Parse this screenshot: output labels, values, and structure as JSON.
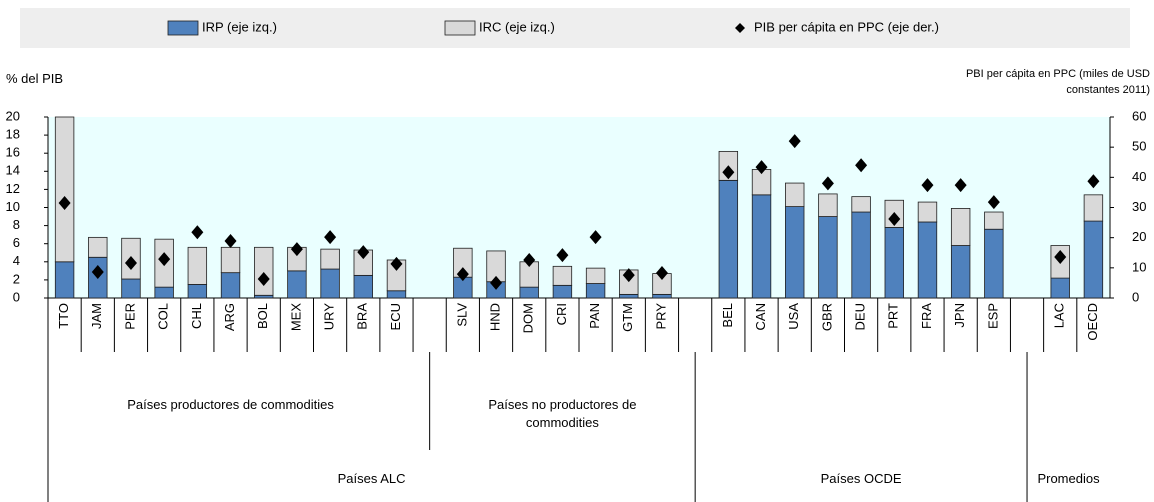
{
  "chart_data": {
    "type": "bar",
    "stacked": true,
    "legend": "top",
    "categories": [
      "TTO",
      "JAM",
      "PER",
      "COL",
      "CHL",
      "ARG",
      "BOL",
      "MEX",
      "URY",
      "BRA",
      "ECU",
      null,
      "SLV",
      "HND",
      "DOM",
      "CRI",
      "PAN",
      "GTM",
      "PRY",
      null,
      "BEL",
      "CAN",
      "USA",
      "GBR",
      "DEU",
      "PRT",
      "FRA",
      "JPN",
      "ESP",
      null,
      "LAC",
      "OECD"
    ],
    "series": [
      {
        "name": "IRP (eje izq.)",
        "color": "#4f81bd",
        "values": [
          4.0,
          4.5,
          2.1,
          1.2,
          1.5,
          2.8,
          0.3,
          3.0,
          3.2,
          2.5,
          0.8,
          null,
          2.3,
          1.8,
          1.2,
          1.4,
          1.6,
          0.4,
          0.4,
          null,
          13.0,
          11.4,
          10.1,
          9.0,
          9.5,
          7.8,
          8.4,
          5.8,
          7.6,
          null,
          2.2,
          8.5
        ]
      },
      {
        "name": "IRC (eje izq.)",
        "color": "#d9d9d9",
        "values": [
          16.0,
          2.2,
          4.5,
          5.3,
          4.1,
          2.8,
          5.3,
          2.6,
          2.2,
          2.8,
          3.4,
          null,
          3.2,
          3.4,
          2.8,
          2.1,
          1.7,
          2.7,
          2.3,
          null,
          3.2,
          2.8,
          2.6,
          2.5,
          1.7,
          3.0,
          2.2,
          4.1,
          1.9,
          null,
          3.6,
          2.9
        ]
      },
      {
        "name": "PIB per cápita en PPC (eje der.)",
        "color": "#000000",
        "type": "scatter",
        "marker": "diamond",
        "axis": "y2",
        "values": [
          31.5,
          8.6,
          11.6,
          12.9,
          21.8,
          18.9,
          6.3,
          16.2,
          20.2,
          15.2,
          11.3,
          null,
          7.9,
          5.0,
          12.6,
          14.2,
          20.2,
          7.6,
          8.3,
          null,
          41.7,
          43.4,
          52.0,
          38.0,
          44.0,
          26.2,
          37.4,
          37.4,
          31.8,
          null,
          13.6,
          38.7
        ]
      }
    ],
    "ylim": [
      0,
      20
    ],
    "yticks": [
      0,
      2,
      4,
      6,
      8,
      10,
      12,
      14,
      16,
      18,
      20
    ],
    "y2lim": [
      0,
      60
    ],
    "y2ticks": [
      0,
      10,
      20,
      30,
      40,
      50,
      60
    ],
    "ylabel": "% del PIB",
    "y2label": "PBI per cápita en PPC (miles de USD constantes 2011)",
    "group_labels": [
      "Países productores de commodities",
      "Países no productores de commodities",
      "Países ALC",
      "Países OCDE",
      "Promedios"
    ]
  }
}
